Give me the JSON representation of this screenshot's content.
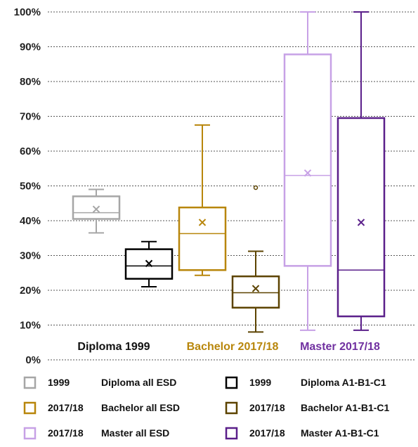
{
  "chart_data": {
    "type": "box",
    "y_unit": "%",
    "ylim": [
      0,
      100
    ],
    "y_ticks": [
      "0%",
      "10%",
      "20%",
      "30%",
      "40%",
      "50%",
      "60%",
      "70%",
      "80%",
      "90%",
      "100%"
    ],
    "grid": "horizontal dashed",
    "groups": [
      {
        "label": "Diploma 1999",
        "color": "#111111"
      },
      {
        "label": "Bachelor 2017/18",
        "color": "#b8860b"
      },
      {
        "label": "Master 2017/18",
        "color": "#7030a0"
      }
    ],
    "series": [
      {
        "year": "1999",
        "name": "Diploma all ESD",
        "color": "#a6a6a6",
        "min": 36.5,
        "q1": 40.5,
        "median": 42.3,
        "q3": 47,
        "max": 49,
        "mean": 43.3,
        "outliers": []
      },
      {
        "year": "1999",
        "name": "Diploma A1-B1-C1",
        "color": "#000000",
        "min": 21,
        "q1": 23.3,
        "median": 27,
        "q3": 31.8,
        "max": 34,
        "mean": 27.7,
        "outliers": []
      },
      {
        "year": "2017/18",
        "name": "Bachelor all ESD",
        "color": "#b8860b",
        "min": 24.3,
        "q1": 25.8,
        "median": 36.3,
        "q3": 43.8,
        "max": 67.5,
        "mean": 39.5,
        "outliers": []
      },
      {
        "year": "2017/18",
        "name": "Bachelor A1-B1-C1",
        "color": "#5c4300",
        "min": 8,
        "q1": 15,
        "median": 19.3,
        "q3": 24,
        "max": 31.2,
        "mean": 20.5,
        "outliers": [
          49.5
        ]
      },
      {
        "year": "2017/18",
        "name": "Master all ESD",
        "color": "#c7a1e6",
        "min": 8.5,
        "q1": 27,
        "median": 53,
        "q3": 87.8,
        "max": 100,
        "mean": 53.7,
        "outliers": []
      },
      {
        "year": "2017/18",
        "name": "Master A1-B1-C1",
        "color": "#5a1f8a",
        "min": 8.5,
        "q1": 12.5,
        "median": 25.8,
        "q3": 69.5,
        "max": 100,
        "mean": 39.5,
        "outliers": []
      }
    ],
    "legend_position": "bottom"
  }
}
